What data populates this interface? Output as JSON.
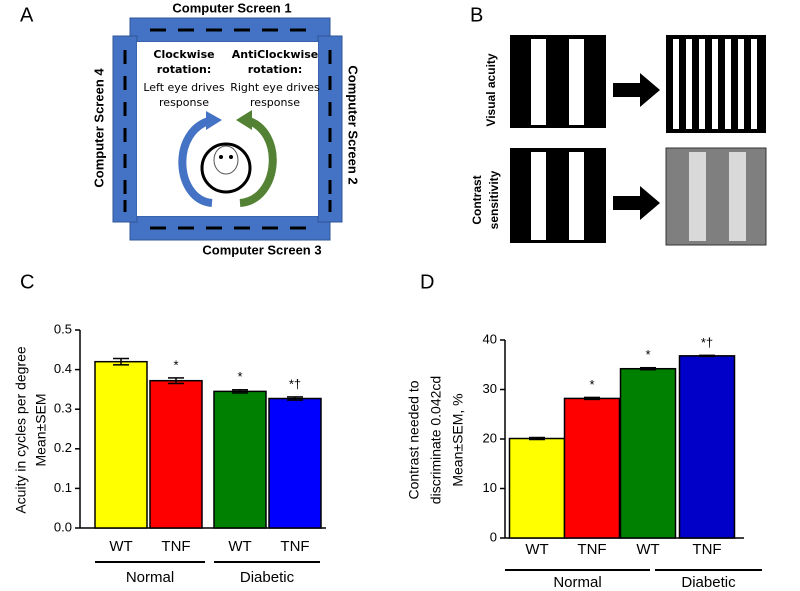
{
  "panel_labels": [
    "A",
    "B",
    "C",
    "D"
  ],
  "diagram_a": {
    "screens": [
      "Computer Screen 1",
      "Computer Screen 2",
      "Computer Screen 3",
      "Computer Screen 4"
    ],
    "clockwise": {
      "title": [
        "Clockwise",
        "rotation:"
      ],
      "text": [
        "Left eye drives",
        "response"
      ]
    },
    "anticlockwise": {
      "title": [
        "AntiClockwise",
        "rotation:"
      ],
      "text": [
        "Right eye drives",
        "response"
      ]
    }
  },
  "diagram_b": {
    "rows": [
      [
        "Visual acuity"
      ],
      [
        "Contrast",
        "sensitivity"
      ]
    ]
  },
  "chart_data": [
    {
      "type": "bar",
      "ylabel": [
        "Acuity in cycles per degree",
        "Mean±SEM"
      ],
      "categories": [
        "WT",
        "TNF",
        "WT",
        "TNF"
      ],
      "groups": [
        "Normal",
        "Diabetic"
      ],
      "values": [
        0.42,
        0.372,
        0.345,
        0.327
      ],
      "errors": [
        0.008,
        0.007,
        0.004,
        0.004
      ],
      "significance": [
        null,
        "*",
        "*",
        "*†"
      ],
      "colors": [
        "#ffff00",
        "#ff0000",
        "#008000",
        "#0000ff"
      ],
      "ylim": [
        0,
        0.5
      ],
      "yticks": [
        {
          "value": 0,
          "label": "0.0"
        },
        0.1,
        0.2,
        0.3,
        0.4,
        0.5
      ]
    },
    {
      "type": "bar",
      "ylabel": [
        "Contrast needed to",
        "discriminate 0.042cd",
        "Mean±SEM, %"
      ],
      "categories": [
        "WT",
        "TNF",
        "WT",
        "TNF"
      ],
      "groups": [
        "Normal",
        "Diabetic"
      ],
      "values": [
        20.1,
        28.2,
        34.2,
        36.8
      ],
      "errors": [
        0.2,
        0.2,
        0.2,
        0.1
      ],
      "significance": [
        null,
        "*",
        "*",
        "*†"
      ],
      "colors": [
        "#ffff00",
        "#ff0000",
        "#008000",
        "#0000c8"
      ],
      "ylim": [
        0,
        40
      ],
      "yticks": [
        0,
        10,
        20,
        30,
        40
      ]
    }
  ]
}
